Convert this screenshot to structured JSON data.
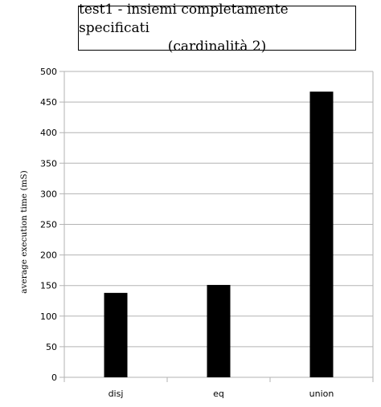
{
  "chart_data": {
    "type": "bar",
    "title": "test1 - insiemi completamente specificati",
    "subtitle": "(cardinalità 2)",
    "xlabel": "",
    "ylabel": "average execution time (mS)",
    "categories": [
      "disj",
      "eq",
      "union"
    ],
    "values": [
      138,
      151,
      467
    ],
    "ylim": [
      0,
      500
    ],
    "yticks": [
      0,
      50,
      100,
      150,
      200,
      250,
      300,
      350,
      400,
      450,
      500
    ],
    "grid": true,
    "legend": "none",
    "colors": {
      "bar": "#000000",
      "grid": "#b3b3b3",
      "axis": "#b3b3b3"
    }
  }
}
